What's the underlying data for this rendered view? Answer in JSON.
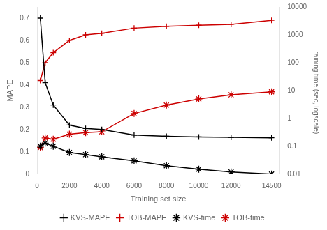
{
  "chart_data": {
    "type": "line",
    "x_label": "Training set size",
    "y_label": "MAPE",
    "y2_label": "Training time (sec, logscale)",
    "x": [
      200,
      500,
      1000,
      2000,
      3000,
      4000,
      6000,
      8000,
      10000,
      12000,
      14500
    ],
    "series": [
      {
        "name": "KVS-MAPE",
        "color": "#000000",
        "marker": "plus",
        "line_style": "solid",
        "axis": "y",
        "values": [
          0.7,
          0.41,
          0.31,
          0.22,
          0.205,
          0.2,
          0.175,
          0.17,
          0.167,
          0.165,
          0.163
        ]
      },
      {
        "name": "TOB-MAPE",
        "color": "#cc0000",
        "marker": "plus",
        "line_style": "solid",
        "axis": "y",
        "values": [
          0.42,
          0.5,
          0.545,
          0.6,
          0.625,
          0.632,
          0.655,
          0.663,
          0.668,
          0.672,
          0.69
        ]
      },
      {
        "name": "KVS-time",
        "color": "#000000",
        "marker": "star",
        "line_style": "solid",
        "axis": "y2",
        "values": [
          0.1,
          0.13,
          0.1,
          0.06,
          0.05,
          0.042,
          0.03,
          0.02,
          0.015,
          0.012,
          0.01
        ]
      },
      {
        "name": "TOB-time",
        "color": "#cc0000",
        "marker": "star",
        "line_style": "solid",
        "axis": "y2",
        "values": [
          0.09,
          0.2,
          0.18,
          0.27,
          0.31,
          0.33,
          1.5,
          3.0,
          5.0,
          7.0,
          9.0
        ]
      }
    ],
    "xlim": [
      0,
      15000
    ],
    "xticks": [
      0,
      2000,
      4000,
      6000,
      8000,
      10000,
      12000,
      14500
    ],
    "ylim": [
      0,
      0.75
    ],
    "yticks": [
      0,
      0.1,
      0.2,
      0.3,
      0.4,
      0.5,
      0.6,
      0.7
    ],
    "y2lim": [
      0.01,
      10000
    ],
    "y2ticks": [
      0.01,
      0.1,
      1,
      10,
      100,
      1000,
      10000
    ],
    "log": "y2",
    "grid": false,
    "legend": "bottom"
  }
}
